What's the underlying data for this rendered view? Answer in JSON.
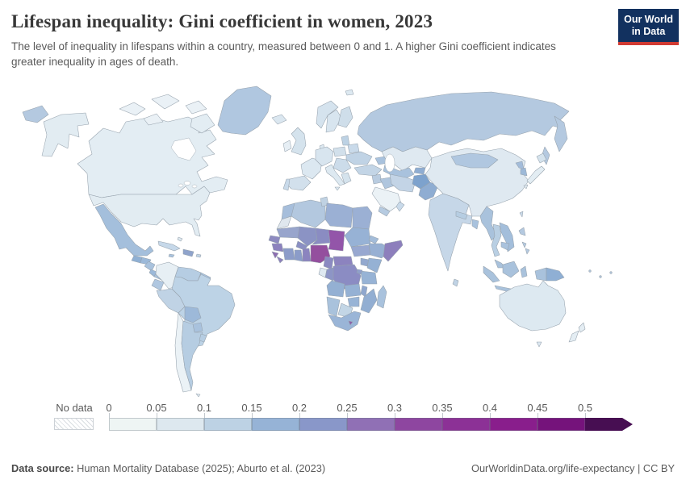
{
  "header": {
    "title": "Lifespan inequality: Gini coefficient in women, 2023",
    "subtitle": "The level of inequality in lifespans within a country, measured between 0 and 1. A higher Gini coefficient indicates greater inequality in ages of death.",
    "logo": {
      "line1": "Our World",
      "line2": "in Data",
      "bg": "#12315f",
      "accent": "#d13b33"
    }
  },
  "legend": {
    "no_data_label": "No data",
    "ticks": [
      "0",
      "0.05",
      "0.1",
      "0.15",
      "0.2",
      "0.25",
      "0.3",
      "0.35",
      "0.4",
      "0.45",
      "0.5"
    ],
    "segment_colors": [
      "#eef5f4",
      "#dde8ef",
      "#bdd2e4",
      "#96b3d6",
      "#8997c9",
      "#9070b5",
      "#8e46a0",
      "#8c3196",
      "#891e8c",
      "#75137b"
    ],
    "arrow_color": "#470e52"
  },
  "chart_data": {
    "type": "choropleth",
    "title": "Lifespan inequality: Gini coefficient in women, 2023",
    "metric": "Gini coefficient of lifespan inequality (women)",
    "year": "2023",
    "bins": [
      0,
      0.05,
      0.1,
      0.15,
      0.2,
      0.25,
      0.3,
      0.35,
      0.4,
      0.45,
      0.5
    ],
    "bin_colors": [
      "#eef5f4",
      "#dde8ef",
      "#bdd2e4",
      "#96b3d6",
      "#8997c9",
      "#9070b5",
      "#8e46a0",
      "#8c3196",
      "#891e8c",
      "#75137b"
    ],
    "over_max_color": "#470e52",
    "no_data_style": "gray diagonal hatching",
    "legend_position": "bottom",
    "notes": "Country values are encoded by fill color; lightest shades (~0-0.1) in North America, Europe, Australia, China; medium blues (~0.1-0.2) across Russia, Latin America, Asia, most of Africa; purples (~0.25-0.35) in the Sahel and central Africa, with Chad and Nigeria darkest"
  },
  "footer": {
    "source_label": "Data source:",
    "source_text": " Human Mortality Database (2025); Aburto et al. (2023)",
    "credit": "OurWorldinData.org/life-expectancy | CC BY"
  },
  "map": {
    "ocean": "#ffffff",
    "border": "#96a2ad",
    "regions": {
      "chukotka": "#b4c9e0",
      "alaska": "#e2ecf2",
      "canada": "#e3edf3",
      "arctic": "#eaf1f6",
      "greenland": "#b0c7e0",
      "usa": "#e2ecf2",
      "mexico": "#a4bfdc",
      "guatemala": "#8fb0d4",
      "honduras": "#9cb9d9",
      "nicaragua": "#a9c2dd",
      "costa_rica": "#9cb9d9",
      "panama": "#a9c2dd",
      "cuba": "#c6d8e9",
      "jamaica": "#a9c2dd",
      "hispaniola": "#8fa3cb",
      "puerto_rico": "#c0d3e5",
      "bahamas": "#dde8ef",
      "colombia": "#e7eff4",
      "venezuela": "#b6cde3",
      "guyana": "#a9c2dd",
      "ecuador": "#b0c7e0",
      "peru": "#c0d3e5",
      "brazil": "#bdd3e6",
      "bolivia": "#9db9d9",
      "paraguay": "#a9c2dd",
      "chile": "#ebf2f6",
      "argentina": "#b6cde2",
      "uruguay": "#b6cde2",
      "falkland": "#dde8ef",
      "iceland": "#dbe7f0",
      "svalbard": "#dde9f1",
      "norway": "#d5e3ee",
      "sweden": "#d8e5ef",
      "finland": "#cfdeea",
      "denmark": "#dde9f1",
      "uk": "#d5e3ed",
      "ireland": "#e6eef4",
      "france": "#dce8f1",
      "spain": "#d2e0ec",
      "portugal": "#c9daea",
      "central_europe": "#d8e5ef",
      "italy": "#dde9f1",
      "poland": "#d2e0eb",
      "baltics": "#bdd2e4",
      "belarus": "#c9daea",
      "ukraine": "#c0d3e5",
      "balkans": "#ccdcea",
      "greece": "#d5e3ed",
      "turkey": "#c3d5e6",
      "caucasus": "#a9c2dd",
      "russia": "#b4c9e0",
      "kazakhstan": "#dfe9f1",
      "uzbek_turkmen": "#a9c2dd",
      "kyrgyz_tajik": "#8fadd2",
      "syria": "#b9cce0",
      "iraq": "#b0c6de",
      "iran": "#c3d4e6",
      "afghanistan": "#7da2cd",
      "pakistan": "#8fadd2",
      "saudi": "#ebf2f6",
      "yemen": "#b6cbe1",
      "oman": "#c9daea",
      "india": "#c6d7e8",
      "sri_lanka": "#c0d3e5",
      "nepal": "#b6cde2",
      "bangladesh": "#a9c2dd",
      "china": "#dfe9f1",
      "mongolia": "#b0c7e0",
      "nkorea": "#a3bcda",
      "skorea": "#9db9d8",
      "japan": "#e3edf3",
      "hokkaido": "#d5e3ed",
      "taiwan": "#c9daea",
      "myanmar": "#a9c2dc",
      "thailand": "#b9cfe3",
      "vietnam": "#a3bedb",
      "cambodia": "#a9c2dd",
      "malaysia": "#a9c2dc",
      "indonesia": "#a9c2dc",
      "philippines": "#b4c9e0",
      "wpapua": "#a9c2dc",
      "png": "#8fafd4",
      "pacific": "#b4c9e0",
      "australia": "#dde9f1",
      "tasmania": "#dce8f1",
      "nz": "#e4edf3",
      "morocco": "#a6bedb",
      "wsahara": "#dfe7ee",
      "algeria": "#b3c8df",
      "tunisia": "#c0d2e3",
      "libya": "#9bb0d4",
      "egypt": "#9bb0d4",
      "mauritania": "#98a5cc",
      "mali": "#8b93c4",
      "niger": "#8a8cc2",
      "chad": "#9355a9",
      "sudan": "#97b2d5",
      "ssudan": "#98a8d0",
      "eritrea": "#a3bcd9",
      "ethiopia": "#97b0d3",
      "somalia": "#8d7fbc",
      "senegal": "#8d8ac0",
      "guinea": "#8c82be",
      "sleone": "#8d6eb1",
      "liberia": "#8d80bc",
      "ivory": "#8c9cc9",
      "burkina": "#8a8fc3",
      "ghana": "#8b9cc9",
      "togo_benin": "#8b84bf",
      "nigeria": "#944f9e",
      "cameroon": "#8b8ac1",
      "car": "#8c83bf",
      "drc": "#8b8cc3",
      "gabon": "#dfe9f1",
      "congo": "#8d95c6",
      "uganda": "#93a9cf",
      "kenya": "#95b1d4",
      "tanzania": "#97b3d5",
      "rwanda": "#8f9fcb",
      "angola": "#94b0d3",
      "zambia": "#95b1d4",
      "malawi": "#8fa7ce",
      "mozambique": "#92aed2",
      "zimbabwe": "#98b4d6",
      "botswana": "#c3d6e6",
      "namibia": "#a9c2dc",
      "south_africa": "#9ab5d7",
      "lesotho": "#8c5fa9",
      "madagascar": "#a9c2dd"
    }
  }
}
